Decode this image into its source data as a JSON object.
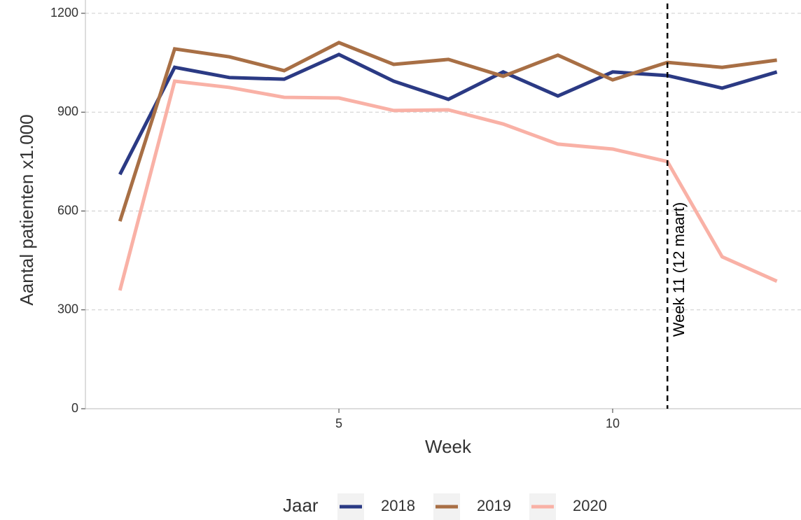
{
  "chart_data": {
    "type": "line",
    "x": [
      1,
      2,
      3,
      4,
      5,
      6,
      7,
      8,
      9,
      10,
      11,
      12,
      13
    ],
    "series": [
      {
        "name": "2018",
        "color": "#2b3a84",
        "values": [
          711,
          1036,
          1005,
          1000,
          1075,
          994,
          939,
          1022,
          949,
          1022,
          1011,
          973,
          1022
        ]
      },
      {
        "name": "2019",
        "color": "#a86f45",
        "values": [
          569,
          1092,
          1068,
          1026,
          1111,
          1045,
          1060,
          1009,
          1073,
          998,
          1051,
          1036,
          1058
        ]
      },
      {
        "name": "2020",
        "color": "#f9b1a6",
        "values": [
          359,
          994,
          975,
          945,
          943,
          905,
          907,
          864,
          803,
          788,
          750,
          461,
          387
        ]
      }
    ],
    "x_label": "Week",
    "y_label": "Aantal patienten x1.000",
    "legend_title": "Jaar",
    "legend_position": "bottom",
    "xlim": [
      0.37,
      13.44
    ],
    "ylim": [
      0,
      1200
    ],
    "xticks": [
      5,
      10
    ],
    "yticks": [
      0,
      300,
      600,
      900,
      1200
    ],
    "grid": true,
    "vline": {
      "x": 11,
      "label": "Week 11 (12 maart)"
    }
  }
}
